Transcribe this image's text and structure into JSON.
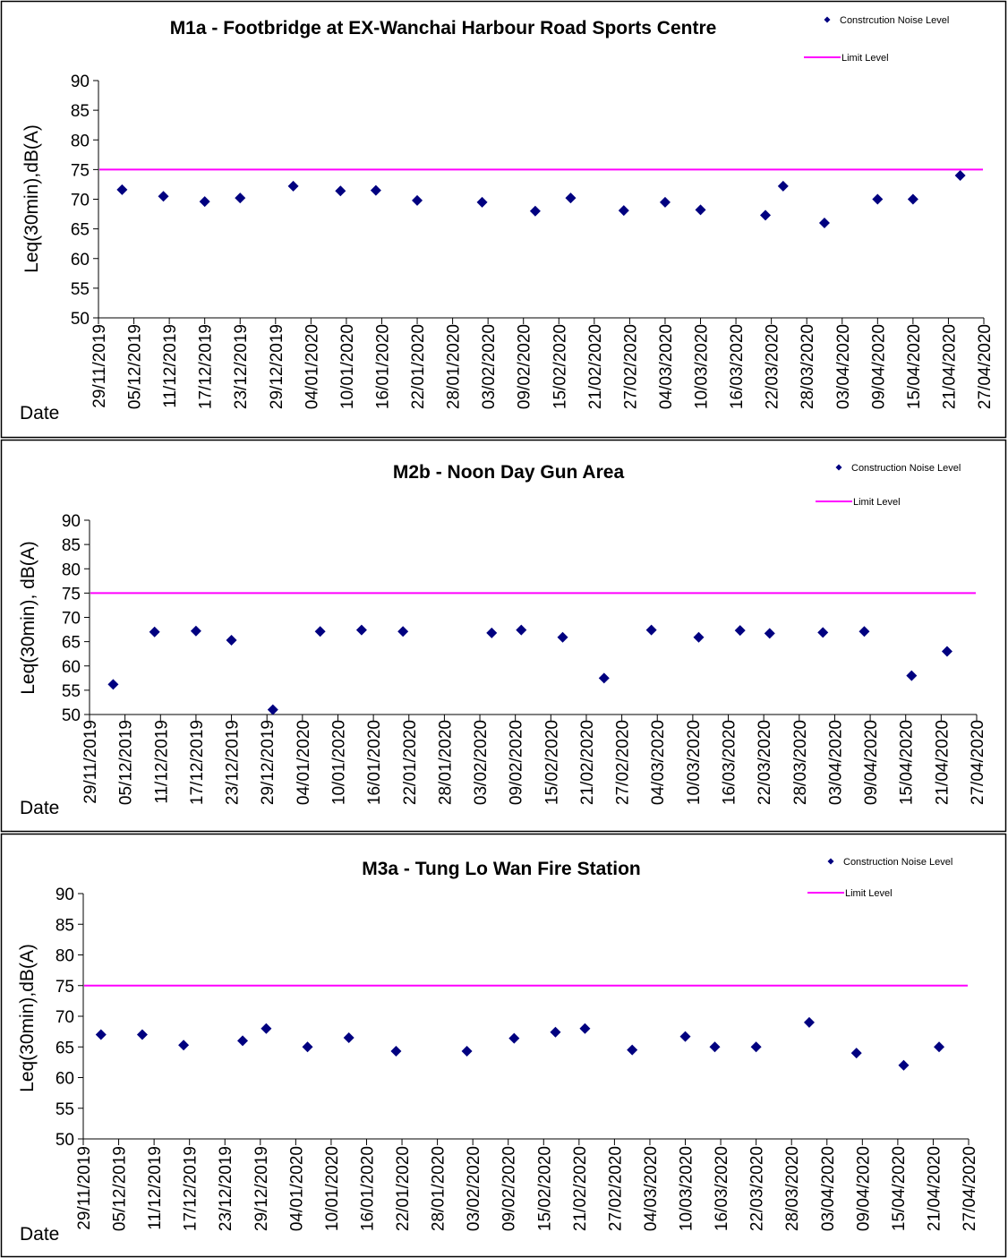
{
  "date_ticks": [
    "29/11/2019",
    "05/12/2019",
    "11/12/2019",
    "17/12/2019",
    "23/12/2019",
    "29/12/2019",
    "04/01/2020",
    "10/01/2020",
    "16/01/2020",
    "22/01/2020",
    "28/01/2020",
    "03/02/2020",
    "09/02/2020",
    "15/02/2020",
    "21/02/2020",
    "27/02/2020",
    "04/03/2020",
    "10/03/2020",
    "16/03/2020",
    "22/03/2020",
    "28/03/2020",
    "03/04/2020",
    "09/04/2020",
    "15/04/2020",
    "21/04/2020",
    "27/04/2020"
  ],
  "colors": {
    "series": "#000080",
    "limit": "#ff00ff",
    "axis": "#000000"
  },
  "chart_data": [
    {
      "type": "scatter",
      "title": "M1a - Footbridge at EX-Wanchai Harbour Road Sports Centre",
      "xlabel": "Date",
      "ylabel": "Leq(30min),dB(A)",
      "xlim": [
        "29/11/2019",
        "27/04/2020"
      ],
      "ylim": [
        50,
        90
      ],
      "yticks": [
        50,
        55,
        60,
        65,
        70,
        75,
        80,
        85,
        90
      ],
      "grid": false,
      "legend_position": "top-right",
      "series": [
        {
          "name": "Construction Noise Level",
          "legend_label": "Constrcution Noise Level",
          "marker": "diamond",
          "x": [
            "03/12/2019",
            "10/12/2019",
            "17/12/2019",
            "23/12/2019",
            "01/01/2020",
            "09/01/2020",
            "15/01/2020",
            "22/01/2020",
            "02/02/2020",
            "11/02/2020",
            "17/02/2020",
            "26/02/2020",
            "04/03/2020",
            "10/03/2020",
            "21/03/2020",
            "24/03/2020",
            "31/03/2020",
            "09/04/2020",
            "15/04/2020",
            "23/04/2020"
          ],
          "y": [
            71.6,
            70.5,
            69.6,
            70.2,
            72.2,
            71.4,
            71.5,
            69.8,
            69.5,
            68.0,
            70.2,
            68.1,
            69.5,
            68.2,
            67.3,
            72.2,
            66.0,
            70.0,
            70.0,
            74.0
          ]
        },
        {
          "name": "Limit Level",
          "type": "line",
          "y_constant": 75
        }
      ]
    },
    {
      "type": "scatter",
      "title": "M2b - Noon Day Gun Area",
      "xlabel": "Date",
      "ylabel": "Leq(30min), dB(A)",
      "xlim": [
        "29/11/2019",
        "27/04/2020"
      ],
      "ylim": [
        50,
        90
      ],
      "yticks": [
        50,
        55,
        60,
        65,
        70,
        75,
        80,
        85,
        90
      ],
      "grid": false,
      "legend_position": "top-right",
      "series": [
        {
          "name": "Construction Noise Level",
          "legend_label": "Construction Noise Level",
          "marker": "diamond",
          "x": [
            "03/12/2019",
            "10/12/2019",
            "17/12/2019",
            "23/12/2019",
            "30/12/2019",
            "07/01/2020",
            "14/01/2020",
            "21/01/2020",
            "05/02/2020",
            "10/02/2020",
            "17/02/2020",
            "24/02/2020",
            "03/03/2020",
            "11/03/2020",
            "18/03/2020",
            "23/03/2020",
            "01/04/2020",
            "08/04/2020",
            "16/04/2020",
            "22/04/2020"
          ],
          "y": [
            56.2,
            67.0,
            67.2,
            65.3,
            51.0,
            67.1,
            67.4,
            67.1,
            66.8,
            67.4,
            65.9,
            57.5,
            67.4,
            65.9,
            67.3,
            66.7,
            66.9,
            67.1,
            58.0,
            63.0
          ]
        },
        {
          "name": "Limit Level",
          "type": "line",
          "y_constant": 75
        }
      ]
    },
    {
      "type": "scatter",
      "title": "M3a - Tung Lo Wan Fire Station",
      "xlabel": "Date",
      "ylabel": "Leq(30min),dB(A)",
      "xlim": [
        "29/11/2019",
        "27/04/2020"
      ],
      "ylim": [
        50,
        90
      ],
      "yticks": [
        50,
        55,
        60,
        65,
        70,
        75,
        80,
        85,
        90
      ],
      "grid": false,
      "legend_position": "top-right",
      "series": [
        {
          "name": "Construction Noise Level",
          "legend_label": "Construction Noise Level",
          "marker": "diamond",
          "x": [
            "02/12/2019",
            "09/12/2019",
            "16/12/2019",
            "26/12/2019",
            "30/12/2019",
            "06/01/2020",
            "13/01/2020",
            "21/01/2020",
            "02/02/2020",
            "10/02/2020",
            "17/02/2020",
            "22/02/2020",
            "01/03/2020",
            "10/03/2020",
            "15/03/2020",
            "22/03/2020",
            "31/03/2020",
            "08/04/2020",
            "16/04/2020",
            "22/04/2020"
          ],
          "y": [
            67.0,
            67.0,
            65.3,
            66.0,
            68.0,
            65.0,
            66.5,
            64.3,
            64.3,
            66.4,
            67.4,
            68.0,
            64.5,
            66.7,
            65.0,
            65.0,
            69.0,
            64.0,
            62.0,
            65.0
          ]
        },
        {
          "name": "Limit Level",
          "type": "line",
          "y_constant": 75
        }
      ]
    }
  ]
}
